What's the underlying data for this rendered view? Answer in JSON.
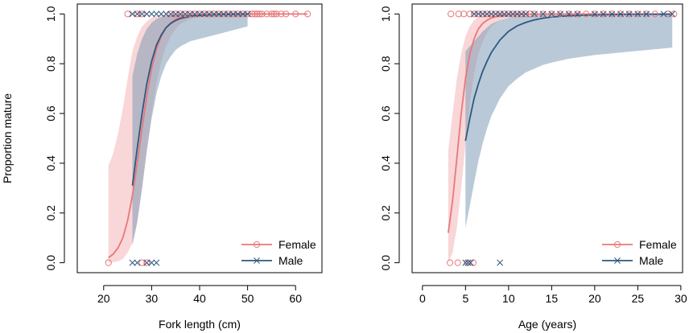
{
  "colors": {
    "female": "#e8787a",
    "male": "#2f587f",
    "female_band": "#f4b5b6",
    "male_band": "#7f9cb7",
    "axis": "#000000"
  },
  "chart_data": [
    {
      "type": "line",
      "name": "fork-length-panel",
      "title": "",
      "xlabel": "Fork length (cm)",
      "ylabel": "Proportion mature",
      "xlim": [
        14.5,
        65.5
      ],
      "ylim": [
        -0.04,
        1.04
      ],
      "xticks": [
        20,
        30,
        40,
        50,
        60
      ],
      "yticks": [
        0.0,
        0.2,
        0.4,
        0.6,
        0.8,
        1.0
      ],
      "grid": false,
      "legend": "bottom-right",
      "series": [
        {
          "name": "Female",
          "marker": "circle",
          "color_key": "female",
          "band_key": "female_band",
          "curve_x": [
            21,
            22,
            23,
            24,
            25,
            26,
            27,
            28,
            29,
            30,
            31,
            32,
            33,
            34,
            35,
            36,
            38,
            40,
            43,
            46,
            50,
            55,
            60,
            62.5
          ],
          "curve_y": [
            0.02,
            0.035,
            0.06,
            0.1,
            0.17,
            0.27,
            0.4,
            0.54,
            0.67,
            0.78,
            0.86,
            0.91,
            0.945,
            0.965,
            0.978,
            0.986,
            0.994,
            0.997,
            0.999,
            1.0,
            1.0,
            1.0,
            1.0,
            1.0
          ],
          "lower": [
            0.0,
            0.002,
            0.006,
            0.015,
            0.04,
            0.08,
            0.17,
            0.3,
            0.45,
            0.6,
            0.72,
            0.81,
            0.87,
            0.91,
            0.94,
            0.96,
            0.98,
            0.99,
            0.995,
            0.998,
            0.999,
            1.0,
            1.0,
            1.0
          ],
          "upper": [
            0.39,
            0.44,
            0.52,
            0.62,
            0.74,
            0.85,
            0.91,
            0.95,
            0.97,
            0.985,
            0.992,
            0.996,
            0.998,
            0.999,
            1.0,
            1.0,
            1.0,
            1.0,
            1.0,
            1.0,
            1.0,
            1.0,
            1.0,
            1.0
          ],
          "points_mature": [
            25,
            27,
            28,
            34,
            35,
            36,
            37,
            38,
            39,
            40,
            41,
            42,
            43,
            44,
            45,
            46,
            47,
            48,
            49,
            50,
            51,
            51.5,
            52,
            52.5,
            53,
            54,
            55,
            55.5,
            56,
            57,
            58,
            60,
            62.5
          ],
          "points_immature": [
            21,
            28,
            29
          ]
        },
        {
          "name": "Male",
          "marker": "x",
          "color_key": "male",
          "band_key": "male_band",
          "curve_x": [
            26,
            27,
            28,
            29,
            30,
            31,
            32,
            33,
            34,
            35,
            36,
            38,
            40,
            42,
            45,
            48,
            50
          ],
          "curve_y": [
            0.31,
            0.46,
            0.6,
            0.72,
            0.81,
            0.875,
            0.915,
            0.945,
            0.962,
            0.974,
            0.982,
            0.99,
            0.994,
            0.996,
            0.998,
            0.999,
            0.999
          ],
          "lower": [
            0.07,
            0.16,
            0.3,
            0.45,
            0.58,
            0.68,
            0.75,
            0.8,
            0.83,
            0.855,
            0.87,
            0.89,
            0.9,
            0.91,
            0.925,
            0.94,
            0.95
          ],
          "upper": [
            0.75,
            0.84,
            0.9,
            0.94,
            0.965,
            0.98,
            0.988,
            0.993,
            0.996,
            0.998,
            0.999,
            1.0,
            1.0,
            1.0,
            1.0,
            1.0,
            1.0
          ],
          "points_mature": [
            26,
            27,
            28,
            29,
            30,
            31,
            32,
            33,
            34,
            35,
            36,
            37,
            38,
            39,
            40,
            41,
            42,
            43,
            44,
            45,
            46,
            47,
            48,
            49,
            50
          ],
          "points_immature": [
            26,
            27,
            29,
            30,
            31
          ]
        }
      ]
    },
    {
      "type": "line",
      "name": "age-panel",
      "title": "",
      "xlabel": "Age (years)",
      "ylabel": "",
      "xlim": [
        -1.2,
        30.2
      ],
      "ylim": [
        -0.04,
        1.04
      ],
      "xticks": [
        0,
        5,
        10,
        15,
        20,
        25,
        30
      ],
      "yticks": [
        0.0,
        0.2,
        0.4,
        0.6,
        0.8,
        1.0
      ],
      "grid": false,
      "legend": "bottom-right",
      "series": [
        {
          "name": "Female",
          "marker": "circle",
          "color_key": "female",
          "band_key": "female_band",
          "curve_x": [
            3,
            3.5,
            4,
            4.5,
            5,
            5.5,
            6,
            6.5,
            7,
            7.5,
            8,
            9,
            10,
            12,
            15,
            20,
            25,
            29
          ],
          "curve_y": [
            0.12,
            0.25,
            0.42,
            0.6,
            0.74,
            0.84,
            0.9,
            0.94,
            0.962,
            0.975,
            0.984,
            0.993,
            0.997,
            0.999,
            1.0,
            1.0,
            1.0,
            1.0
          ],
          "lower": [
            0.0,
            0.04,
            0.14,
            0.3,
            0.48,
            0.64,
            0.76,
            0.84,
            0.89,
            0.925,
            0.95,
            0.975,
            0.988,
            0.996,
            0.999,
            1.0,
            1.0,
            1.0
          ],
          "upper": [
            0.45,
            0.6,
            0.74,
            0.84,
            0.91,
            0.95,
            0.975,
            0.987,
            0.993,
            0.996,
            0.998,
            0.999,
            1.0,
            1.0,
            1.0,
            1.0,
            1.0,
            1.0
          ],
          "points_mature": [
            3.3,
            4.2,
            4.8,
            5.5,
            6,
            6.5,
            7,
            7.5,
            8,
            8.5,
            9,
            9.5,
            10,
            10.5,
            11,
            11.5,
            12,
            12.5,
            13,
            14,
            15,
            16,
            17,
            18,
            19,
            20,
            21,
            22,
            23,
            24,
            25,
            26,
            27,
            28.5,
            29.2
          ],
          "points_immature": [
            3.2,
            4.1,
            5.2,
            5.9
          ]
        },
        {
          "name": "Male",
          "marker": "x",
          "color_key": "male",
          "band_key": "male_band",
          "curve_x": [
            5,
            5.5,
            6,
            6.5,
            7,
            7.5,
            8,
            9,
            10,
            11,
            12,
            13,
            14,
            15,
            17,
            20,
            23,
            26,
            29
          ],
          "curve_y": [
            0.49,
            0.58,
            0.66,
            0.72,
            0.77,
            0.81,
            0.845,
            0.895,
            0.93,
            0.952,
            0.966,
            0.976,
            0.983,
            0.988,
            0.993,
            0.996,
            0.998,
            0.999,
            0.999
          ],
          "lower": [
            0.14,
            0.23,
            0.32,
            0.41,
            0.48,
            0.54,
            0.59,
            0.66,
            0.71,
            0.74,
            0.765,
            0.78,
            0.795,
            0.805,
            0.82,
            0.835,
            0.845,
            0.855,
            0.865
          ],
          "upper": [
            0.85,
            0.87,
            0.89,
            0.91,
            0.93,
            0.945,
            0.96,
            0.975,
            0.985,
            0.99,
            0.993,
            0.995,
            0.997,
            0.998,
            0.999,
            1.0,
            1.0,
            1.0,
            1.0
          ],
          "points_mature": [
            6,
            6.5,
            7,
            7.5,
            8,
            8.5,
            9,
            9.5,
            10,
            10.5,
            11,
            11.5,
            12,
            13,
            14,
            15,
            16,
            17,
            18,
            20,
            21,
            22,
            23,
            24,
            25,
            26,
            28,
            29
          ],
          "points_immature": [
            5,
            5.3,
            5.6,
            9
          ]
        }
      ]
    }
  ]
}
